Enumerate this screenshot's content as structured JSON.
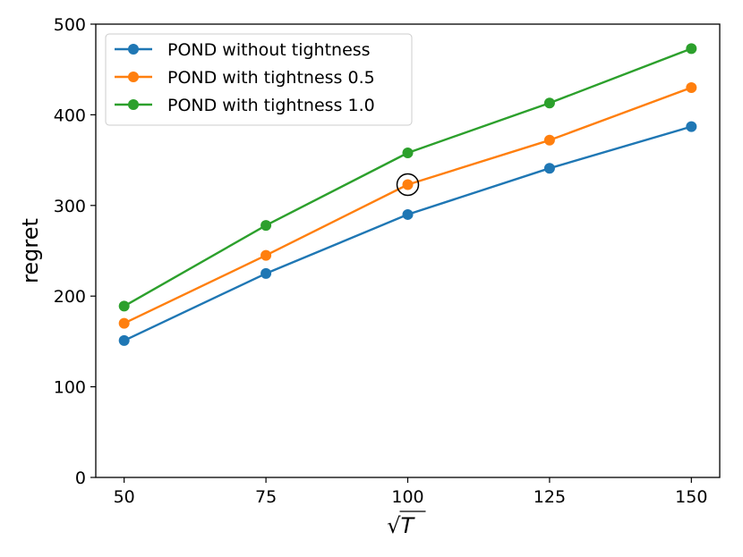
{
  "chart_data": {
    "type": "line",
    "title": "",
    "xlabel": "T",
    "xlabel_prefix": "√",
    "ylabel": "regret",
    "x": [
      50,
      75,
      100,
      125,
      150
    ],
    "x_tick_labels": [
      "50",
      "75",
      "100",
      "125",
      "150"
    ],
    "xlim": [
      45,
      155
    ],
    "ylim": [
      0,
      500
    ],
    "y_ticks": [
      0,
      100,
      200,
      300,
      400,
      500
    ],
    "y_tick_labels": [
      "0",
      "100",
      "200",
      "300",
      "400",
      "500"
    ],
    "grid": false,
    "legend_position": "top-left",
    "series": [
      {
        "name": "POND without tightness",
        "color": "#1f77b4",
        "values": [
          151,
          225,
          290,
          341,
          387
        ]
      },
      {
        "name": "POND with tightness 0.5",
        "color": "#ff7f0e",
        "values": [
          170,
          245,
          323,
          372,
          430
        ]
      },
      {
        "name": "POND with tightness 1.0",
        "color": "#2ca02c",
        "values": [
          189,
          278,
          358,
          413,
          473
        ]
      }
    ],
    "annotation": {
      "type": "circle",
      "series": "POND with tightness 0.5",
      "x": 100,
      "y": 323
    }
  }
}
